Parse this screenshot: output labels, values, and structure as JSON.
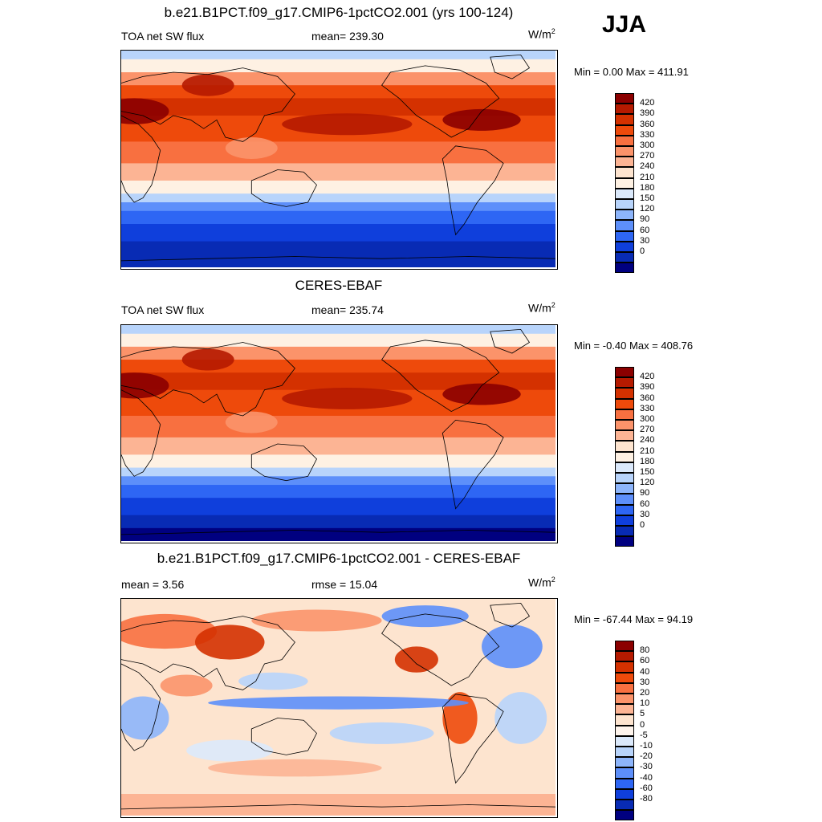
{
  "season": "JJA",
  "panels": [
    {
      "title": "b.e21.B1PCT.f09_g17.CMIP6-1pctCO2.001 (yrs 100-124)",
      "left_label": "TOA net SW flux",
      "mid_label": "mean= 239.30",
      "unit": "W/m",
      "unit_sup": "2",
      "minmax": "Min =   0.00 Max = 411.91",
      "colorbar": {
        "labels": [
          "420",
          "390",
          "360",
          "330",
          "300",
          "270",
          "240",
          "210",
          "180",
          "150",
          "120",
          "90",
          "60",
          "30",
          "0"
        ],
        "colors": [
          "#8b0000",
          "#b51a00",
          "#d43100",
          "#ee4a0b",
          "#f87040",
          "#fb936a",
          "#fcb494",
          "#fde4cf",
          "#fef1e3",
          "#dbe9fb",
          "#b8d4fb",
          "#8db5fb",
          "#5d8ffa",
          "#2e66f4",
          "#0f3fdc",
          "#082bb4",
          "#000080"
        ]
      },
      "map_style": "model"
    },
    {
      "title": "CERES-EBAF",
      "left_label": "TOA net SW flux",
      "mid_label": "mean= 235.74",
      "unit": "W/m",
      "unit_sup": "2",
      "minmax": "Min =  -0.40 Max = 408.76",
      "colorbar": {
        "labels": [
          "420",
          "390",
          "360",
          "330",
          "300",
          "270",
          "240",
          "210",
          "180",
          "150",
          "120",
          "90",
          "60",
          "30",
          "0"
        ],
        "colors": [
          "#8b0000",
          "#b51a00",
          "#d43100",
          "#ee4a0b",
          "#f87040",
          "#fb936a",
          "#fcb494",
          "#fde4cf",
          "#fef1e3",
          "#dbe9fb",
          "#b8d4fb",
          "#8db5fb",
          "#5d8ffa",
          "#2e66f4",
          "#0f3fdc",
          "#082bb4",
          "#000080"
        ]
      },
      "map_style": "obs"
    },
    {
      "title": "b.e21.B1PCT.f09_g17.CMIP6-1pctCO2.001 - CERES-EBAF",
      "left_label": "mean =   3.56",
      "mid_label": "rmse =  15.04",
      "unit": "W/m",
      "unit_sup": "2",
      "minmax": "Min = -67.44 Max =  94.19",
      "colorbar": {
        "labels": [
          "80",
          "60",
          "40",
          "30",
          "20",
          "10",
          "5",
          "0",
          "-5",
          "-10",
          "-20",
          "-30",
          "-40",
          "-60",
          "-80"
        ],
        "colors": [
          "#8b0000",
          "#b51a00",
          "#d43100",
          "#ee4a0b",
          "#f87040",
          "#fb936a",
          "#fcb494",
          "#fde4cf",
          "#fef4ec",
          "#dbe9fb",
          "#b8d4fb",
          "#8db5fb",
          "#5d8ffa",
          "#2e66f4",
          "#0f3fdc",
          "#082bb4",
          "#000080"
        ]
      },
      "map_style": "diff"
    }
  ],
  "chart_data": [
    {
      "type": "heatmap",
      "title": "b.e21.B1PCT.f09_g17.CMIP6-1pctCO2.001 (yrs 100-124)",
      "variable": "TOA net SW flux",
      "unit": "W/m2",
      "mean": 239.3,
      "min": 0.0,
      "max": 411.91,
      "levels": [
        0,
        30,
        60,
        90,
        120,
        150,
        180,
        210,
        240,
        270,
        300,
        330,
        360,
        390,
        420
      ]
    },
    {
      "type": "heatmap",
      "title": "CERES-EBAF",
      "variable": "TOA net SW flux",
      "unit": "W/m2",
      "mean": 235.74,
      "min": -0.4,
      "max": 408.76,
      "levels": [
        0,
        30,
        60,
        90,
        120,
        150,
        180,
        210,
        240,
        270,
        300,
        330,
        360,
        390,
        420
      ]
    },
    {
      "type": "heatmap",
      "title": "b.e21.B1PCT.f09_g17.CMIP6-1pctCO2.001 - CERES-EBAF",
      "unit": "W/m2",
      "mean": 3.56,
      "rmse": 15.04,
      "min": -67.44,
      "max": 94.19,
      "levels": [
        -80,
        -60,
        -40,
        -30,
        -20,
        -10,
        -5,
        0,
        5,
        10,
        20,
        30,
        40,
        60,
        80
      ]
    }
  ]
}
